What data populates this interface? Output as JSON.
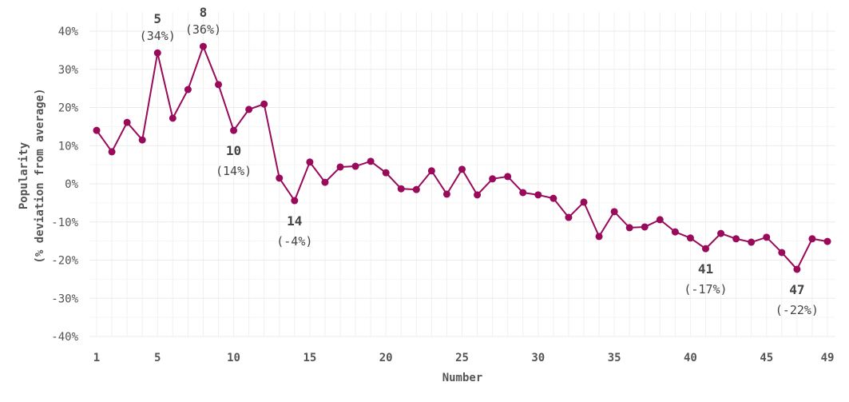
{
  "chart_data": {
    "type": "line",
    "title": "",
    "xlabel": "Number",
    "ylabel_line1": "Popularity",
    "ylabel_line2": "(% deviation from average)",
    "xlim": [
      1,
      49
    ],
    "ylim": [
      -40,
      40
    ],
    "x_ticks": [
      1,
      5,
      10,
      15,
      20,
      25,
      30,
      35,
      40,
      45,
      49
    ],
    "y_ticks": [
      -40,
      -30,
      -20,
      -10,
      0,
      10,
      20,
      30,
      40
    ],
    "y_tick_labels": [
      "-40%",
      "-30%",
      "-20%",
      "-10%",
      "0%",
      "10%",
      "20%",
      "30%",
      "40%"
    ],
    "grid": true,
    "color": "#990a5a",
    "x": [
      1,
      2,
      3,
      4,
      5,
      6,
      7,
      8,
      9,
      10,
      11,
      12,
      13,
      14,
      15,
      16,
      17,
      18,
      19,
      20,
      21,
      22,
      23,
      24,
      25,
      26,
      27,
      28,
      29,
      30,
      31,
      32,
      33,
      34,
      35,
      36,
      37,
      38,
      39,
      40,
      41,
      42,
      43,
      44,
      45,
      46,
      47,
      48,
      49
    ],
    "values": [
      14.0,
      8.4,
      16.1,
      11.5,
      34.3,
      17.2,
      24.7,
      36.0,
      26.0,
      14.0,
      19.5,
      20.9,
      1.5,
      -4.4,
      5.7,
      0.4,
      4.4,
      4.6,
      5.9,
      2.9,
      -1.3,
      -1.5,
      3.4,
      -2.7,
      3.8,
      -2.9,
      1.3,
      1.9,
      -2.3,
      -2.9,
      -3.8,
      -8.8,
      -4.8,
      -13.8,
      -7.3,
      -11.5,
      -11.3,
      -9.4,
      -12.6,
      -14.2,
      -17.0,
      -13.0,
      -14.4,
      -15.3,
      -14.0,
      -18.0,
      -22.4,
      -14.4,
      -15.1
    ],
    "annotations": [
      {
        "number": "5",
        "label": "(34%)",
        "x": 5,
        "position": "above"
      },
      {
        "number": "8",
        "label": "(36%)",
        "x": 8,
        "position": "above"
      },
      {
        "number": "10",
        "label": "(14%)",
        "x": 10,
        "position": "below"
      },
      {
        "number": "14",
        "label": "(-4%)",
        "x": 14,
        "position": "below"
      },
      {
        "number": "41",
        "label": "(-17%)",
        "x": 41,
        "position": "below"
      },
      {
        "number": "47",
        "label": "(-22%)",
        "x": 47,
        "position": "below"
      }
    ]
  }
}
